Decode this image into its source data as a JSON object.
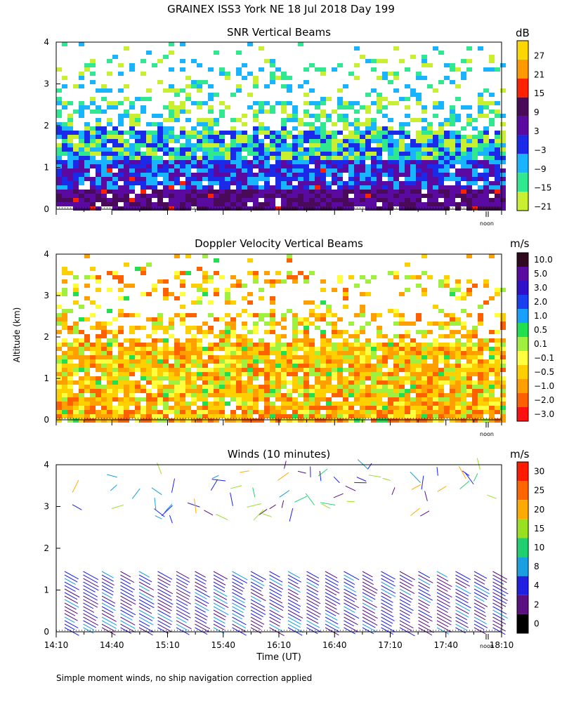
{
  "title": "GRAINEX ISS3 York NE  18 Jul 2018 Day 199",
  "ylabel": "Altitude (km)",
  "xlabel": "Time (UT)",
  "footnote": "Simple moment winds, no ship navigation correction applied",
  "noon_label": "noon",
  "chart_data": [
    {
      "type": "heatmap",
      "title": "SNR Vertical Beams",
      "colorbar_unit": "dB",
      "ylim": [
        0,
        4
      ],
      "yticks": [
        0,
        1,
        2,
        3,
        4
      ],
      "colorbar_labels": [
        "27",
        "21",
        "15",
        "9",
        "3",
        "−3",
        "−9",
        "−15",
        "−21"
      ],
      "colorbar_colors": [
        "#ffd700",
        "#ff9900",
        "#ff2200",
        "#4a0a5a",
        "#5a0aa0",
        "#1a2ae8",
        "#18b4ff",
        "#30e890",
        "#c8f030"
      ]
    },
    {
      "type": "heatmap",
      "title": "Doppler Velocity Vertical Beams",
      "colorbar_unit": "m/s",
      "ylim": [
        0,
        4
      ],
      "yticks": [
        0,
        1,
        2,
        3,
        4
      ],
      "colorbar_labels": [
        "10.0",
        "5.0",
        "3.0",
        "2.0",
        "1.0",
        "0.5",
        "0.1",
        "−0.1",
        "−0.5",
        "−1.0",
        "−2.0",
        "−3.0"
      ],
      "colorbar_colors": [
        "#300820",
        "#5a0aa0",
        "#3010c8",
        "#1a40f0",
        "#18a0ff",
        "#20e050",
        "#a0f040",
        "#ffff40",
        "#ffd000",
        "#ffa000",
        "#ff6000",
        "#ff1010"
      ]
    },
    {
      "type": "scatter",
      "title": "Winds (10 minutes)",
      "colorbar_unit": "m/s",
      "ylim": [
        0,
        4
      ],
      "yticks": [
        0,
        1,
        2,
        3,
        4
      ],
      "x_tick_labels": [
        "14:10",
        "14:40",
        "15:10",
        "15:40",
        "16:10",
        "16:40",
        "17:10",
        "17:40",
        "18:10"
      ],
      "colorbar_labels": [
        "30",
        "25",
        "20",
        "15",
        "10",
        "8",
        "4",
        "2",
        "0"
      ],
      "colorbar_colors": [
        "#ff1a00",
        "#ff6600",
        "#ffaa00",
        "#99e020",
        "#20d070",
        "#18a0e0",
        "#2020e0",
        "#5a1080",
        "#000000"
      ]
    }
  ]
}
